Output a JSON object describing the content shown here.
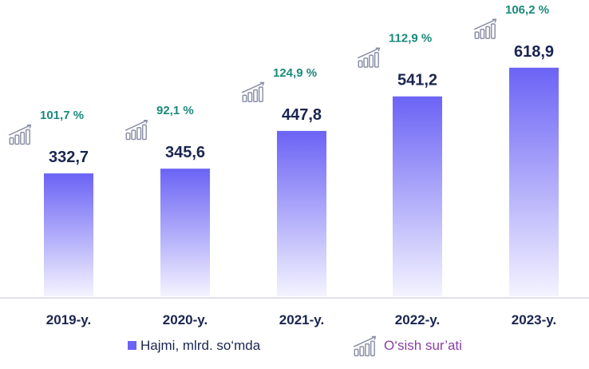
{
  "chart_data": {
    "type": "bar",
    "categories": [
      "2019-y.",
      "2020-y.",
      "2021-y.",
      "2022-y.",
      "2023-y."
    ],
    "series": [
      {
        "name": "Hajmi, mlrd. so‘mda",
        "values": [
          332.7,
          345.6,
          447.8,
          541.2,
          618.9
        ],
        "labels": [
          "332,7",
          "345,6",
          "447,8",
          "541,2",
          "618,9"
        ]
      },
      {
        "name": "O‘sish sur’ati",
        "values": [
          101.7,
          92.1,
          124.9,
          112.9,
          106.2
        ],
        "labels": [
          "101,7 %",
          "92,1 %",
          "124,9 %",
          "112,9 %",
          "106,2 %"
        ]
      }
    ],
    "ylim": [
      0,
      650
    ],
    "grid": false,
    "legend_position": "bottom",
    "colors": {
      "bar_top": "#6b63f5",
      "bar_bottom": "#f4f3ff",
      "growth": "#1a8a7a",
      "value": "#1a2550",
      "legend_growth": "#8a3fa3"
    },
    "icons": [
      "growth-chart-icon"
    ]
  }
}
